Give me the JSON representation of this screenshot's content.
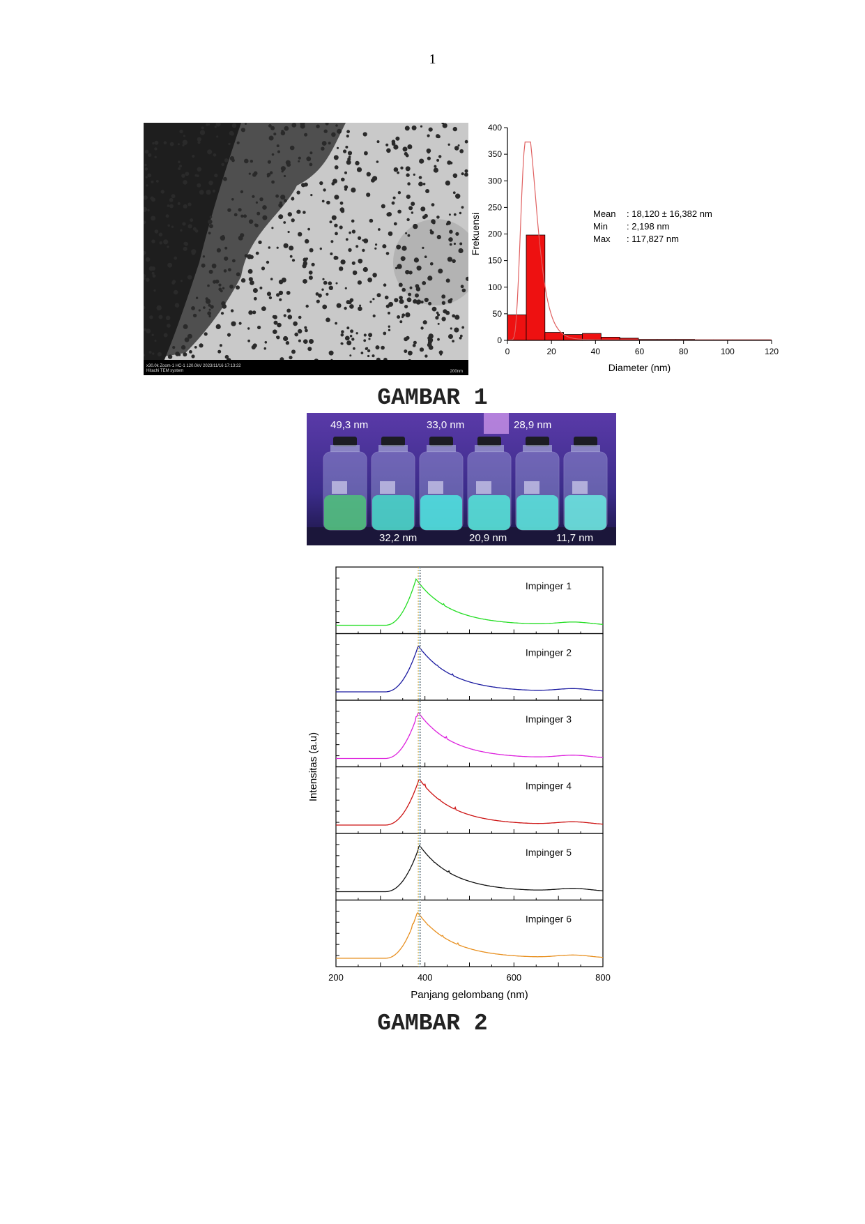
{
  "page": {
    "number": "1"
  },
  "tem_image": {
    "caption_line1": "x30.0k Zoom-1 HC-1 120.0kV 2023/11/16 17:13:22",
    "caption_line2": "Hitachi TEM system",
    "scale_bar": "200nm"
  },
  "figure1": {
    "title": "GAMBAR 1"
  },
  "figure2": {
    "title": "GAMBAR 2"
  },
  "chart_data": [
    {
      "type": "bar",
      "xlabel": "Diameter (nm)",
      "ylabel": "Frekuensi",
      "xlim": [
        0,
        120
      ],
      "ylim": [
        0,
        400
      ],
      "xticks": [
        "0",
        "20",
        "40",
        "60",
        "80",
        "100",
        "120"
      ],
      "yticks": [
        "0",
        "50",
        "100",
        "150",
        "200",
        "250",
        "300",
        "350",
        "400"
      ],
      "bin_width": 8.5,
      "bins": [
        {
          "x": 4.3,
          "value": 48
        },
        {
          "x": 12.8,
          "value": 198
        },
        {
          "x": 21.3,
          "value": 15
        },
        {
          "x": 29.8,
          "value": 11
        },
        {
          "x": 38.3,
          "value": 13
        },
        {
          "x": 46.8,
          "value": 6
        },
        {
          "x": 55.3,
          "value": 4
        },
        {
          "x": 63.8,
          "value": 2
        },
        {
          "x": 72.3,
          "value": 2
        },
        {
          "x": 80.8,
          "value": 2
        },
        {
          "x": 89.3,
          "value": 1
        },
        {
          "x": 97.8,
          "value": 1
        },
        {
          "x": 106.3,
          "value": 1
        },
        {
          "x": 114.8,
          "value": 1
        }
      ],
      "fit_curve": {
        "peak_x": 10.5,
        "peak_y": 372,
        "sigma": 4.2
      },
      "stats": [
        {
          "label": "Mean",
          "value": ": 18,120 ± 16,382 nm"
        },
        {
          "label": "Min",
          "value": ": 2,198 nm"
        },
        {
          "label": "Max",
          "value": ": 117,827 nm"
        }
      ],
      "colors": {
        "bar": "#ee1111",
        "fit": "#e06060"
      }
    },
    {
      "type": "line",
      "xlabel": "Panjang gelombang (nm)",
      "ylabel": "Intensitas (a.u)",
      "xlim": [
        200,
        800
      ],
      "xticks": [
        "200",
        "400",
        "600",
        "800"
      ],
      "reference_lines_x": [
        385,
        388,
        390
      ],
      "series": [
        {
          "name": "Impinger 1",
          "color": "#22dd22",
          "peak": 380
        },
        {
          "name": "Impinger 2",
          "color": "#1a1aa0",
          "peak": 385
        },
        {
          "name": "Impinger 3",
          "color": "#dd22dd",
          "peak": 385
        },
        {
          "name": "Impinger 4",
          "color": "#cc1111",
          "peak": 387
        },
        {
          "name": "Impinger 5",
          "color": "#111111",
          "peak": 388
        },
        {
          "name": "Impinger 6",
          "color": "#e89020",
          "peak": 383
        }
      ]
    }
  ],
  "vials_photo": {
    "top_labels": [
      "49,3 nm",
      "33,0 nm",
      "28,9 nm"
    ],
    "bottom_labels": [
      "32,2 nm",
      "20,9 nm",
      "11,7 nm"
    ]
  }
}
